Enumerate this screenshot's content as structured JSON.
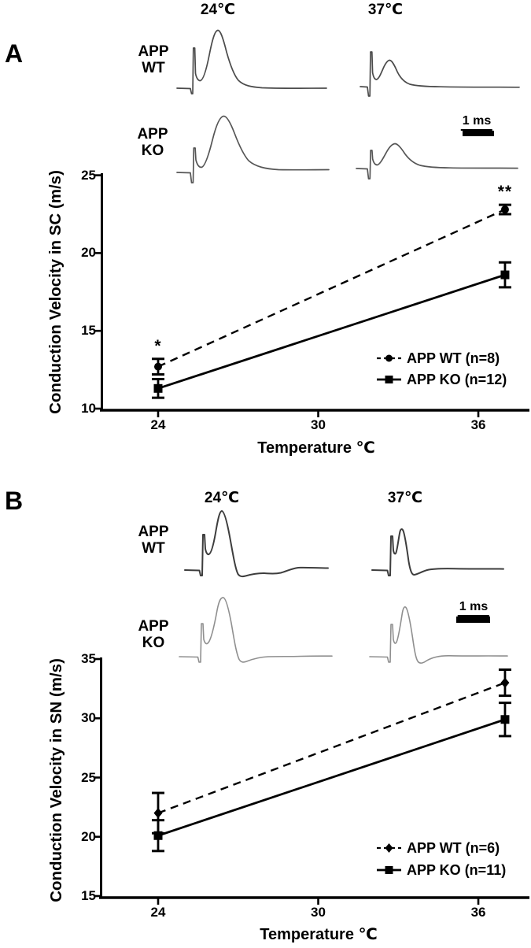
{
  "figure": {
    "panels": [
      {
        "letter": "A",
        "inset": {
          "temp_headers": [
            "24℃",
            "37℃"
          ],
          "row_labels": [
            {
              "line1": "APP",
              "line2": "WT"
            },
            {
              "line1": "APP",
              "line2": "KO"
            }
          ],
          "scale_bar_label": "1 ms"
        }
      },
      {
        "letter": "B",
        "inset": {
          "temp_headers": [
            "24℃",
            "37℃"
          ],
          "row_labels": [
            {
              "line1": "APP",
              "line2": "WT"
            },
            {
              "line1": "APP",
              "line2": "KO"
            }
          ],
          "scale_bar_label": "1 ms"
        }
      }
    ]
  },
  "chart_data": [
    {
      "type": "line",
      "panel": "A",
      "title": "",
      "xlabel": "Temperature ℃",
      "ylabel": "Conduction Velocity in SC (m/s)",
      "x": [
        24,
        37
      ],
      "xticks": [
        24,
        30,
        36
      ],
      "yticks": [
        10,
        15,
        20,
        25
      ],
      "xlim": [
        21.9,
        37.9
      ],
      "ylim": [
        10,
        25
      ],
      "grid": false,
      "legend_position": "lower-right",
      "series": [
        {
          "name": "APP WT (n=8)",
          "line": "dashed",
          "marker": "circle",
          "values": [
            12.7,
            22.8
          ],
          "errors": [
            0.5,
            0.3
          ]
        },
        {
          "name": "APP KO (n=12)",
          "line": "solid",
          "marker": "square",
          "values": [
            11.3,
            18.6
          ],
          "errors": [
            0.6,
            0.8
          ]
        }
      ],
      "annotations": [
        {
          "text": "*",
          "x": 24,
          "above_series": 0
        },
        {
          "text": "**",
          "x": 37,
          "above_series": 0
        }
      ]
    },
    {
      "type": "line",
      "panel": "B",
      "title": "",
      "xlabel": "Temperature ℃",
      "ylabel": "Conduction Velocity in SN (m/s)",
      "x": [
        24,
        37
      ],
      "xticks": [
        24,
        30,
        36
      ],
      "yticks": [
        15,
        20,
        25,
        30,
        35
      ],
      "xlim": [
        21.9,
        37.9
      ],
      "ylim": [
        15,
        35
      ],
      "grid": false,
      "legend_position": "lower-right",
      "series": [
        {
          "name": "APP WT (n=6)",
          "line": "dashed",
          "marker": "diamond",
          "values": [
            22.0,
            33.0
          ],
          "errors": [
            1.7,
            1.1
          ]
        },
        {
          "name": "APP KO (n=11)",
          "line": "solid",
          "marker": "square",
          "values": [
            20.1,
            29.9
          ],
          "errors": [
            1.3,
            1.4
          ]
        }
      ],
      "annotations": []
    }
  ]
}
